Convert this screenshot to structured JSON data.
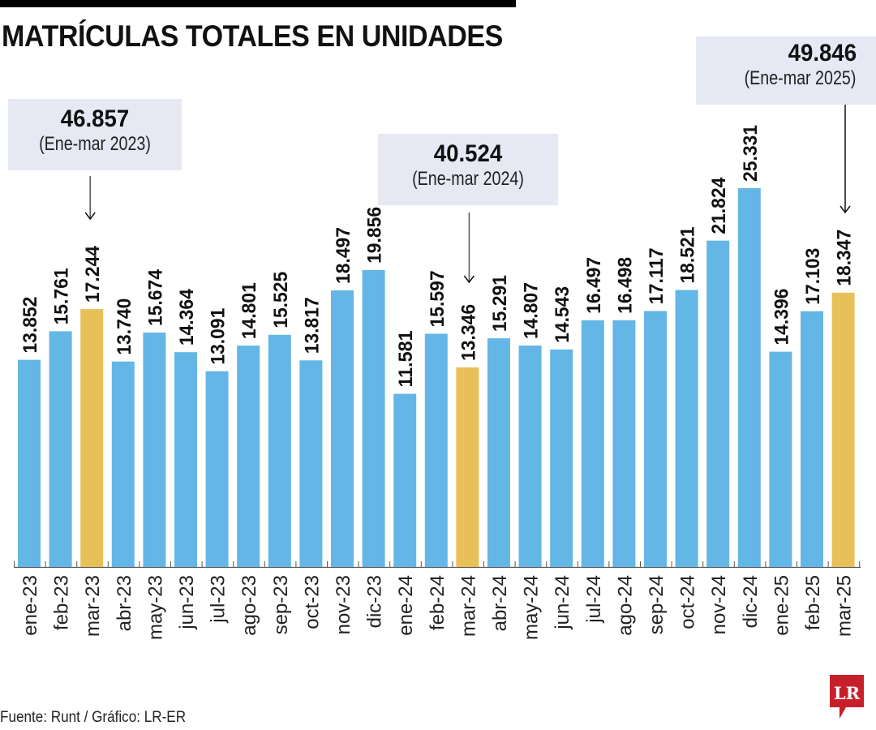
{
  "header": {
    "title": "MATRÍCULAS TOTALES EN UNIDADES"
  },
  "callouts": [
    {
      "value": "46.857",
      "label": "(Ene-mar 2023)",
      "target": "mar-23"
    },
    {
      "value": "40.524",
      "label": "(Ene-mar 2024)",
      "target": "mar-24"
    },
    {
      "value": "49.846",
      "label": "(Ene-mar 2025)",
      "target": "mar-25"
    }
  ],
  "colors": {
    "bar": "#63b6e6",
    "highlight": "#e8c05a",
    "callout_bg": "#e6e9f4",
    "axis": "#555555",
    "logo": "#c8202a"
  },
  "footer": {
    "source": "Fuente: Runt / Gráfico: LR-ER",
    "logo_text": "LR"
  },
  "chart_data": {
    "type": "bar",
    "title": "MATRÍCULAS TOTALES EN UNIDADES",
    "xlabel": "",
    "ylabel": "",
    "ylim": [
      0,
      25331
    ],
    "grid": false,
    "categories": [
      "ene-23",
      "feb-23",
      "mar-23",
      "abr-23",
      "may-23",
      "jun-23",
      "jul-23",
      "ago-23",
      "sep-23",
      "oct-23",
      "nov-23",
      "dic-23",
      "ene-24",
      "feb-24",
      "mar-24",
      "abr-24",
      "may-24",
      "jun-24",
      "jul-24",
      "ago-24",
      "sep-24",
      "oct-24",
      "nov-24",
      "dic-24",
      "ene-25",
      "feb-25",
      "mar-25"
    ],
    "values": [
      13852,
      15761,
      17244,
      13740,
      15674,
      14364,
      13091,
      14801,
      15525,
      13817,
      18497,
      19856,
      11581,
      15597,
      13346,
      15291,
      14807,
      14543,
      16497,
      16498,
      17117,
      18521,
      21824,
      25331,
      14396,
      17103,
      18347
    ],
    "value_labels": [
      "13.852",
      "15.761",
      "17.244",
      "13.740",
      "15.674",
      "14.364",
      "13.091",
      "14.801",
      "15.525",
      "13.817",
      "18.497",
      "19.856",
      "11.581",
      "15.597",
      "13.346",
      "15.291",
      "14.807",
      "14.543",
      "16.497",
      "16.498",
      "17.117",
      "18.521",
      "21.824",
      "25.331",
      "14.396",
      "17.103",
      "18.347"
    ],
    "highlighted": [
      "mar-23",
      "mar-24",
      "mar-25"
    ],
    "annotations": [
      {
        "text": "46.857 (Ene-mar 2023)",
        "points_to": "mar-23"
      },
      {
        "text": "40.524 (Ene-mar 2024)",
        "points_to": "mar-24"
      },
      {
        "text": "49.846 (Ene-mar 2025)",
        "points_to": "mar-25"
      }
    ]
  }
}
